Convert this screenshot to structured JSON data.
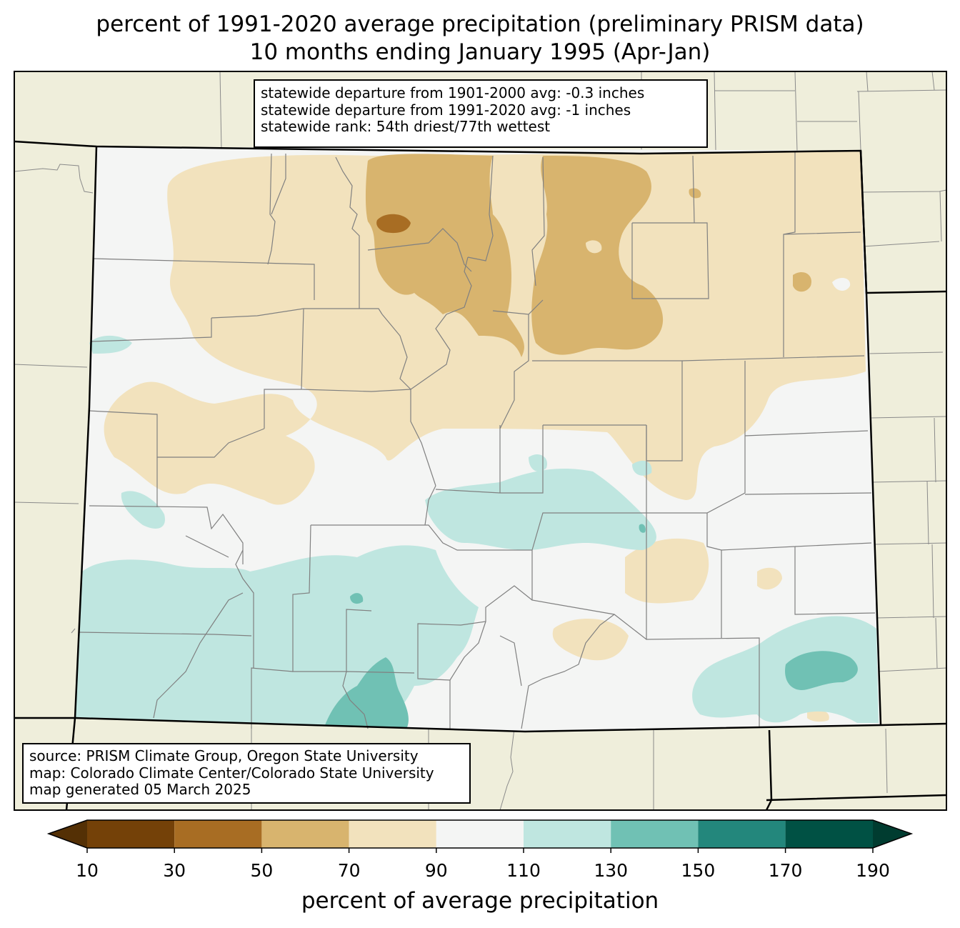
{
  "header": {
    "title_line1": "percent of 1991-2020 average precipitation (preliminary PRISM data)",
    "title_line2": "10 months ending January 1995 (Apr-Jan)"
  },
  "stats_box": {
    "line1": "statewide departure from 1901-2000 avg: -0.3 inches",
    "line2": "statewide departure from 1991-2020 avg: -1 inches",
    "line3": "statewide rank: 54th driest/77th wettest"
  },
  "source_box": {
    "line1": "source: PRISM Climate Group, Oregon State University",
    "line2": "map: Colorado Climate Center/Colorado State University",
    "line3": "map generated 05 March 2025"
  },
  "colorbar": {
    "label": "percent of average precipitation",
    "ticks": [
      "10",
      "30",
      "50",
      "70",
      "90",
      "110",
      "130",
      "150",
      "170",
      "190"
    ],
    "colors": {
      "under": "#543005",
      "10-30": "#744108",
      "30-50": "#a86d23",
      "50-70": "#d8b46e",
      "70-90": "#f2e2bd",
      "90-110": "#f4f5f4",
      "110-130": "#bfe6e0",
      "130-150": "#70c1b4",
      "150-170": "#23877c",
      "170-190": "#005144",
      "over": "#003c30"
    }
  },
  "map": {
    "background_color": "#efeedb",
    "state": "Colorado"
  }
}
